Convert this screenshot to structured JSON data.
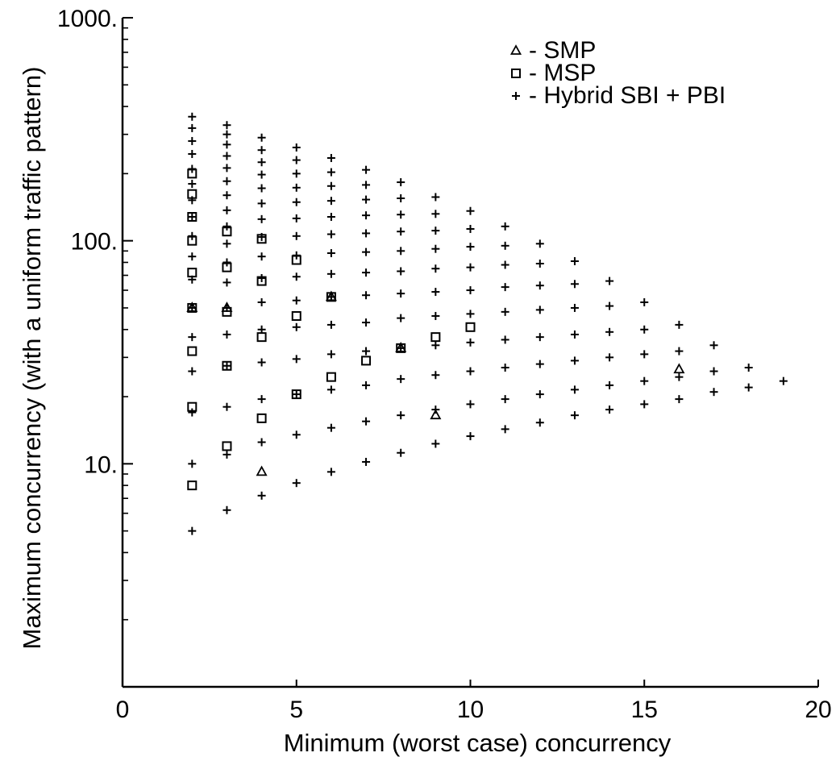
{
  "chart_data": {
    "type": "scatter",
    "title": "",
    "xlabel": "Minimum (worst case) concurrency",
    "ylabel": "Maximum concurrency (with a uniform traffic pattern)",
    "xlim": [
      0,
      20
    ],
    "ylim": [
      1,
      1000
    ],
    "yscale": "log",
    "grid": false,
    "legend_position": "top-right",
    "x_ticks": [
      0,
      5,
      10,
      15,
      20
    ],
    "x_tick_labels": [
      "0",
      "5",
      "10",
      "15",
      "20"
    ],
    "y_ticks": [
      10,
      100,
      1000
    ],
    "y_tick_labels": [
      "10.",
      "100.",
      "1000."
    ],
    "series": [
      {
        "name": "SMP",
        "marker": "triangle",
        "legend_label": "▵ - SMP",
        "points": [
          [
            4,
            9.2
          ],
          [
            9,
            16.5
          ],
          [
            16,
            26.5
          ],
          [
            2,
            50
          ],
          [
            3,
            50
          ],
          [
            8,
            33
          ],
          [
            6,
            56
          ]
        ]
      },
      {
        "name": "MSP",
        "marker": "square",
        "legend_label": "□ - MSP",
        "points": [
          [
            2,
            8
          ],
          [
            2,
            18
          ],
          [
            2,
            32
          ],
          [
            2,
            50
          ],
          [
            2,
            72
          ],
          [
            2,
            100
          ],
          [
            2,
            128
          ],
          [
            2,
            162
          ],
          [
            2,
            200
          ],
          [
            3,
            12
          ],
          [
            3,
            27.5
          ],
          [
            3,
            48
          ],
          [
            3,
            76
          ],
          [
            3,
            110
          ],
          [
            4,
            16
          ],
          [
            4,
            37
          ],
          [
            4,
            66
          ],
          [
            4,
            102
          ],
          [
            5,
            20.5
          ],
          [
            5,
            46
          ],
          [
            5,
            82
          ],
          [
            6,
            24.5
          ],
          [
            6,
            56
          ],
          [
            7,
            29
          ],
          [
            8,
            33
          ],
          [
            9,
            37
          ],
          [
            10,
            41
          ]
        ]
      },
      {
        "name": "Hybrid SBI + PBI",
        "marker": "plus",
        "legend_label": "+ - Hybrid SBI + PBI",
        "points": [
          [
            2,
            5
          ],
          [
            2,
            10
          ],
          [
            2,
            17
          ],
          [
            2,
            26
          ],
          [
            2,
            37
          ],
          [
            2,
            50
          ],
          [
            2,
            67
          ],
          [
            2,
            85
          ],
          [
            2,
            105
          ],
          [
            2,
            128
          ],
          [
            2,
            152
          ],
          [
            2,
            180
          ],
          [
            2,
            210
          ],
          [
            2,
            245
          ],
          [
            2,
            280
          ],
          [
            2,
            320
          ],
          [
            2,
            360
          ],
          [
            3,
            6.2
          ],
          [
            3,
            11
          ],
          [
            3,
            18
          ],
          [
            3,
            27.5
          ],
          [
            3,
            38
          ],
          [
            3,
            50
          ],
          [
            3,
            65
          ],
          [
            3,
            80
          ],
          [
            3,
            97
          ],
          [
            3,
            116
          ],
          [
            3,
            137
          ],
          [
            3,
            160
          ],
          [
            3,
            185
          ],
          [
            3,
            212
          ],
          [
            3,
            240
          ],
          [
            3,
            270
          ],
          [
            3,
            300
          ],
          [
            3,
            330
          ],
          [
            4,
            7.2
          ],
          [
            4,
            12.5
          ],
          [
            4,
            19.5
          ],
          [
            4,
            28.5
          ],
          [
            4,
            40
          ],
          [
            4,
            53
          ],
          [
            4,
            68
          ],
          [
            4,
            85
          ],
          [
            4,
            104
          ],
          [
            4,
            125
          ],
          [
            4,
            147
          ],
          [
            4,
            172
          ],
          [
            4,
            198
          ],
          [
            4,
            225
          ],
          [
            4,
            255
          ],
          [
            4,
            290
          ],
          [
            5,
            8.2
          ],
          [
            5,
            13.5
          ],
          [
            5,
            20.5
          ],
          [
            5,
            29.5
          ],
          [
            5,
            41
          ],
          [
            5,
            54
          ],
          [
            5,
            69
          ],
          [
            5,
            86
          ],
          [
            5,
            105
          ],
          [
            5,
            126
          ],
          [
            5,
            149
          ],
          [
            5,
            173
          ],
          [
            5,
            200
          ],
          [
            5,
            230
          ],
          [
            5,
            262
          ],
          [
            6,
            9.2
          ],
          [
            6,
            14.5
          ],
          [
            6,
            21.5
          ],
          [
            6,
            31
          ],
          [
            6,
            42
          ],
          [
            6,
            56
          ],
          [
            6,
            71
          ],
          [
            6,
            88
          ],
          [
            6,
            107
          ],
          [
            6,
            128
          ],
          [
            6,
            151
          ],
          [
            6,
            176
          ],
          [
            6,
            203
          ],
          [
            6,
            235
          ],
          [
            7,
            10.2
          ],
          [
            7,
            15.5
          ],
          [
            7,
            22.5
          ],
          [
            7,
            32
          ],
          [
            7,
            43
          ],
          [
            7,
            57
          ],
          [
            7,
            72
          ],
          [
            7,
            89
          ],
          [
            7,
            108
          ],
          [
            7,
            130
          ],
          [
            7,
            153
          ],
          [
            7,
            178
          ],
          [
            7,
            208
          ],
          [
            8,
            11.2
          ],
          [
            8,
            16.5
          ],
          [
            8,
            24
          ],
          [
            8,
            33
          ],
          [
            8,
            45
          ],
          [
            8,
            58
          ],
          [
            8,
            73
          ],
          [
            8,
            90
          ],
          [
            8,
            110
          ],
          [
            8,
            131
          ],
          [
            8,
            155
          ],
          [
            8,
            183
          ],
          [
            9,
            12.3
          ],
          [
            9,
            17.5
          ],
          [
            9,
            25
          ],
          [
            9,
            34
          ],
          [
            9,
            46
          ],
          [
            9,
            59
          ],
          [
            9,
            75
          ],
          [
            9,
            92
          ],
          [
            9,
            111
          ],
          [
            9,
            132
          ],
          [
            9,
            157
          ],
          [
            10,
            13.3
          ],
          [
            10,
            18.5
          ],
          [
            10,
            26
          ],
          [
            10,
            35
          ],
          [
            10,
            47
          ],
          [
            10,
            60
          ],
          [
            10,
            76
          ],
          [
            10,
            94
          ],
          [
            10,
            113
          ],
          [
            10,
            136
          ],
          [
            11,
            14.3
          ],
          [
            11,
            19.5
          ],
          [
            11,
            27
          ],
          [
            11,
            36
          ],
          [
            11,
            48
          ],
          [
            11,
            62
          ],
          [
            11,
            78
          ],
          [
            11,
            95
          ],
          [
            11,
            116
          ],
          [
            12,
            15.3
          ],
          [
            12,
            20.5
          ],
          [
            12,
            28
          ],
          [
            12,
            37
          ],
          [
            12,
            49
          ],
          [
            12,
            63
          ],
          [
            12,
            79
          ],
          [
            12,
            97
          ],
          [
            13,
            16.5
          ],
          [
            13,
            21.5
          ],
          [
            13,
            29
          ],
          [
            13,
            38
          ],
          [
            13,
            50
          ],
          [
            13,
            64
          ],
          [
            13,
            81
          ],
          [
            14,
            17.5
          ],
          [
            14,
            22.5
          ],
          [
            14,
            30
          ],
          [
            14,
            39
          ],
          [
            14,
            51
          ],
          [
            14,
            66
          ],
          [
            15,
            18.5
          ],
          [
            15,
            23.5
          ],
          [
            15,
            31
          ],
          [
            15,
            40
          ],
          [
            15,
            53
          ],
          [
            16,
            19.5
          ],
          [
            16,
            24.5
          ],
          [
            16,
            32
          ],
          [
            16,
            42
          ],
          [
            17,
            21
          ],
          [
            17,
            26
          ],
          [
            17,
            34
          ],
          [
            18,
            22
          ],
          [
            18,
            27
          ],
          [
            19,
            23.5
          ]
        ]
      }
    ]
  }
}
